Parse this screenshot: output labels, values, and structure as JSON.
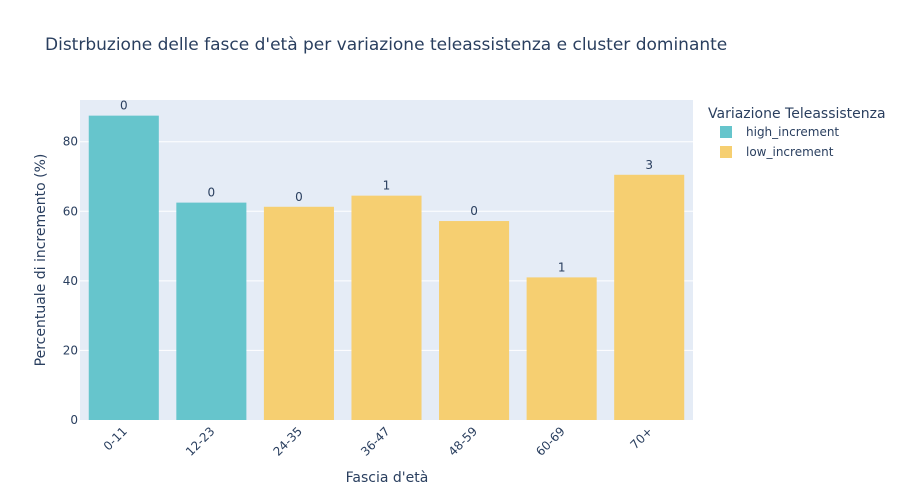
{
  "chart_data": {
    "type": "bar",
    "title": "Distrbuzione delle fasce d'età per variazione teleassistenza e cluster dominante",
    "xlabel": "Fascia d'età",
    "ylabel": "Percentuale di incremento (%)",
    "ylim": [
      0,
      92
    ],
    "yticks": [
      0,
      20,
      40,
      60,
      80
    ],
    "grid": true,
    "categories": [
      "0-11",
      "12-23",
      "24-35",
      "36-47",
      "48-59",
      "60-69",
      "70+"
    ],
    "values": [
      87.5,
      62.5,
      61.3,
      64.5,
      57.2,
      41.0,
      70.5
    ],
    "bar_labels": [
      "0",
      "0",
      "0",
      "1",
      "0",
      "1",
      "3"
    ],
    "bar_groups": [
      "high_increment",
      "high_increment",
      "low_increment",
      "low_increment",
      "low_increment",
      "low_increment",
      "low_increment"
    ],
    "legend": {
      "title": "Variazione Teleassistenza",
      "placement": "top-right",
      "entries": [
        {
          "name": "high_increment",
          "color": "#66c5cc"
        },
        {
          "name": "low_increment",
          "color": "#f6cf71"
        }
      ]
    },
    "colors": {
      "plot_background": "#e5ecf6",
      "grid": "#ffffff",
      "text": "#2a3f5f"
    }
  }
}
